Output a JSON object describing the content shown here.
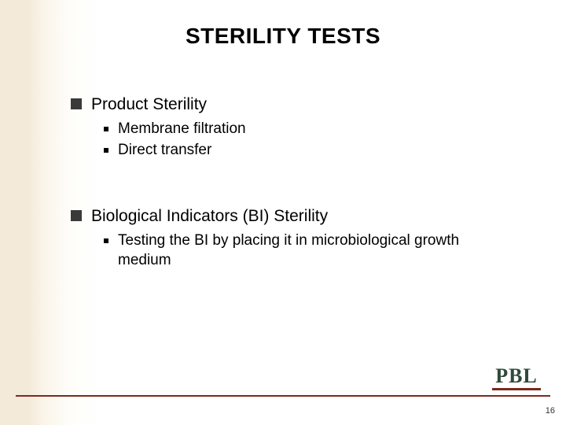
{
  "title": "STERILITY TESTS",
  "colors": {
    "square_bullet": "#3a3a3a",
    "dot_bullet": "#000000",
    "rule": "#7b2a1f",
    "logo_text": "#2f4a3a",
    "bg_left": "#f3ead9",
    "bg_right": "#ffffff"
  },
  "typography": {
    "title_fontsize": 28,
    "level1_fontsize": 21,
    "level2_fontsize": 19,
    "family": "Arial"
  },
  "blocks": [
    {
      "heading": "Product Sterility",
      "items": [
        "Membrane filtration",
        "Direct transfer"
      ]
    },
    {
      "heading": "Biological Indicators (BI) Sterility",
      "items": [
        "Testing the BI by placing it in microbiological growth medium"
      ]
    }
  ],
  "logo": "PBL",
  "page_number": "16"
}
